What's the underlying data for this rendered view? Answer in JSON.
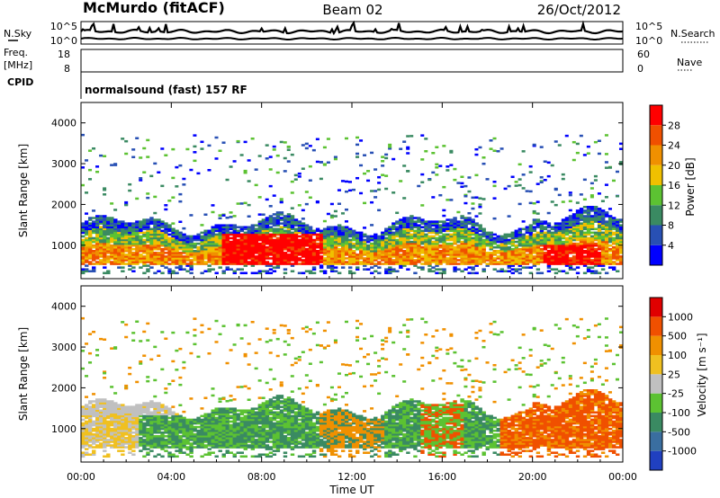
{
  "header": {
    "station": "McMurdo (fitACF)",
    "beam": "Beam 02",
    "date": "26/Oct/2012"
  },
  "top_panels": {
    "nsky_label": "N.Sky",
    "nsearch_label": "N.Search",
    "nsky_ticks": [
      "10^5",
      "10^0"
    ],
    "nsearch_ticks": [
      "10^5",
      "10^0"
    ],
    "freq_label_line1": "Freq.",
    "freq_label_line2": "[MHz]",
    "freq_ticks": [
      "18",
      "8"
    ],
    "nave_label": "Nave",
    "nave_ticks": [
      "60",
      "0"
    ],
    "cpid_label": "CPID",
    "cpid_text": "normalsound (fast) 157 RF"
  },
  "chart_data": [
    {
      "type": "heatmap",
      "title": "",
      "xlabel": "",
      "ylabel": "Slant Range [km]",
      "x_ticks": [
        "00:00",
        "04:00",
        "08:00",
        "12:00",
        "16:00",
        "20:00",
        "00:00"
      ],
      "xlim": [
        0,
        24
      ],
      "y_ticks": [
        "1000",
        "2000",
        "3000",
        "4000"
      ],
      "ylim": [
        180,
        4500
      ],
      "colorbar_label": "Power [dB]",
      "colorbar_ticks": [
        "4",
        "8",
        "12",
        "16",
        "20",
        "24",
        "28"
      ],
      "colorbar_colors": [
        "#0000ff",
        "#2850b4",
        "#3a8a62",
        "#5cc232",
        "#f0c000",
        "#f09000",
        "#f05000",
        "#ff0000"
      ],
      "echo_bands": [
        {
          "x": [
            0,
            24
          ],
          "y": [
            500,
            1700
          ],
          "level": "high"
        },
        {
          "x": [
            6.5,
            10.5
          ],
          "y": [
            500,
            1300
          ],
          "level": "very-high"
        }
      ]
    },
    {
      "type": "heatmap",
      "title": "",
      "xlabel": "Time UT",
      "ylabel": "Slant Range [km]",
      "x_ticks": [
        "00:00",
        "04:00",
        "08:00",
        "12:00",
        "16:00",
        "20:00",
        "00:00"
      ],
      "xlim": [
        0,
        24
      ],
      "y_ticks": [
        "1000",
        "2000",
        "3000",
        "4000"
      ],
      "ylim": [
        180,
        4500
      ],
      "colorbar_label": "Velocity [m s⁻¹]",
      "colorbar_ticks": [
        "1000",
        "500",
        "100",
        "25",
        "-25",
        "-100",
        "-500",
        "-1000"
      ],
      "colorbar_colors": [
        "#2040c0",
        "#3a6ea0",
        "#3a8a62",
        "#5cc232",
        "#c0c0c0",
        "#f0c020",
        "#f09000",
        "#f05000",
        "#e00000"
      ]
    }
  ]
}
